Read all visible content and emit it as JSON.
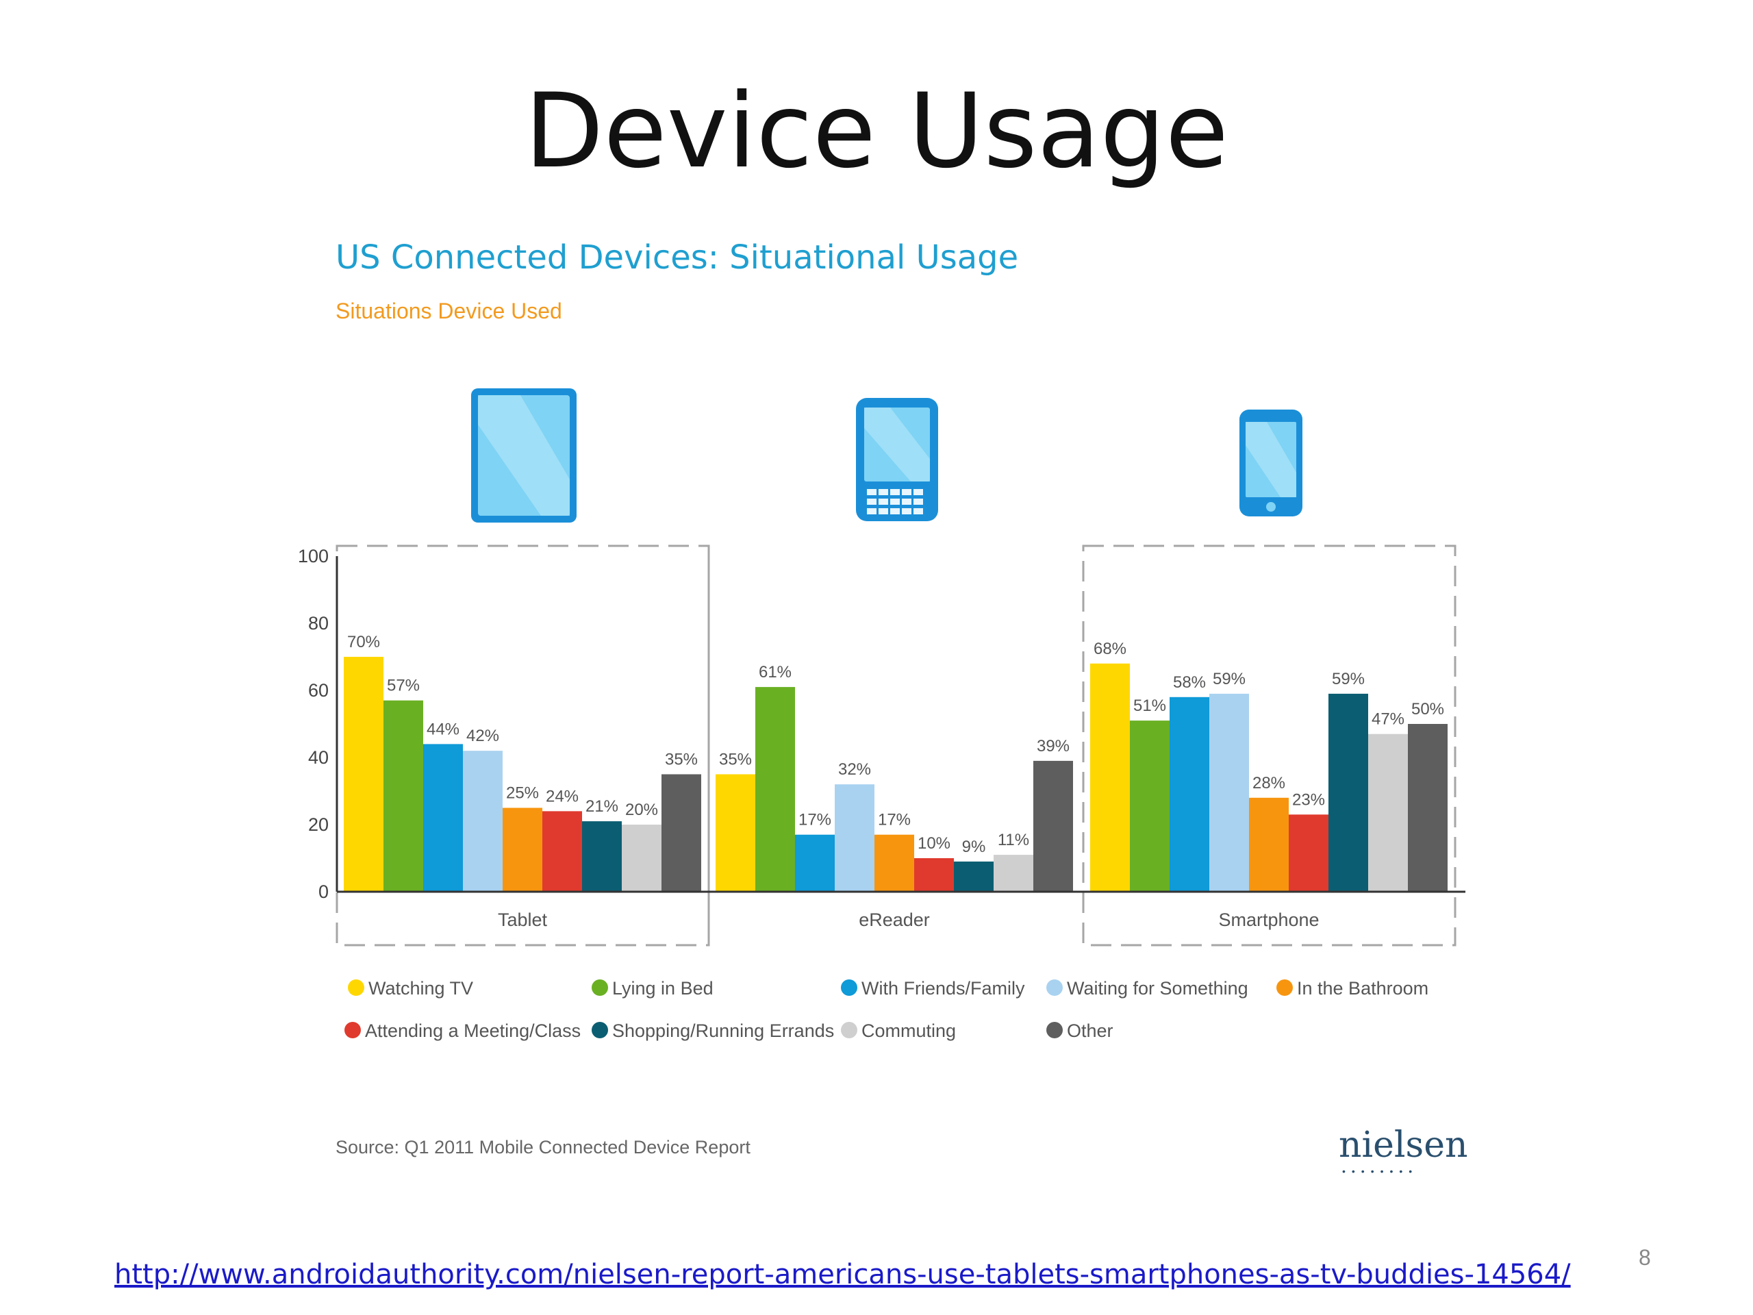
{
  "slide": {
    "title": "Device Usage",
    "page_number": "8",
    "link": "http://www.androidauthority.com/nielsen-report-americans-use-tablets-smartphones-as-tv-buddies-14564/"
  },
  "footer": {
    "source": "Source: Q1 2011 Mobile Connected Device Report",
    "brand": "nielsen"
  },
  "icons": [
    {
      "name": "tablet-icon",
      "label": "Tablet"
    },
    {
      "name": "ereader-icon",
      "label": "eReader"
    },
    {
      "name": "smartphone-icon",
      "label": "Smartphone"
    }
  ],
  "chart_data": {
    "type": "bar",
    "title": "US Connected Devices: Situational Usage",
    "subtitle": "Situations Device Used",
    "categories": [
      "Tablet",
      "eReader",
      "Smartphone"
    ],
    "ylim": [
      0,
      100
    ],
    "yticks": [
      0,
      20,
      40,
      60,
      80,
      100
    ],
    "grid": false,
    "legend_position": "bottom",
    "colors": {
      "Watching TV": "#ffd700",
      "Lying in Bed": "#6ab023",
      "With Friends/Family": "#0f9ad8",
      "Waiting for Something": "#a9d2f0",
      "In the Bathroom": "#f7950f",
      "Attending a Meeting/Class": "#e03a2e",
      "Shopping/Running Errands": "#0b5e72",
      "Commuting": "#cfcfcf",
      "Other": "#5e5e5e"
    },
    "series": [
      {
        "name": "Watching TV",
        "values": [
          70,
          35,
          68
        ],
        "labels": [
          "70%",
          "35%",
          "68%"
        ]
      },
      {
        "name": "Lying in Bed",
        "values": [
          57,
          61,
          51
        ],
        "labels": [
          "57%",
          "61%",
          "51%"
        ]
      },
      {
        "name": "With Friends/Family",
        "values": [
          44,
          17,
          58
        ],
        "labels": [
          "44%",
          "17%",
          "58%"
        ]
      },
      {
        "name": "Waiting for Something",
        "values": [
          42,
          32,
          59
        ],
        "labels": [
          "42%",
          "32%",
          "59%"
        ]
      },
      {
        "name": "In the Bathroom",
        "values": [
          25,
          17,
          28
        ],
        "labels": [
          "25%",
          "17%",
          "28%"
        ]
      },
      {
        "name": "Attending a Meeting/Class",
        "values": [
          24,
          10,
          23
        ],
        "labels": [
          "24%",
          "10%",
          "23%"
        ]
      },
      {
        "name": "Shopping/Running Errands",
        "values": [
          21,
          9,
          59
        ],
        "labels": [
          "21%",
          "9%",
          "59%"
        ]
      },
      {
        "name": "Commuting",
        "values": [
          20,
          11,
          47
        ],
        "labels": [
          "20%",
          "11%",
          "47%"
        ]
      },
      {
        "name": "Other",
        "values": [
          35,
          39,
          50
        ],
        "labels": [
          "35%",
          "39%",
          "50%"
        ]
      }
    ]
  }
}
